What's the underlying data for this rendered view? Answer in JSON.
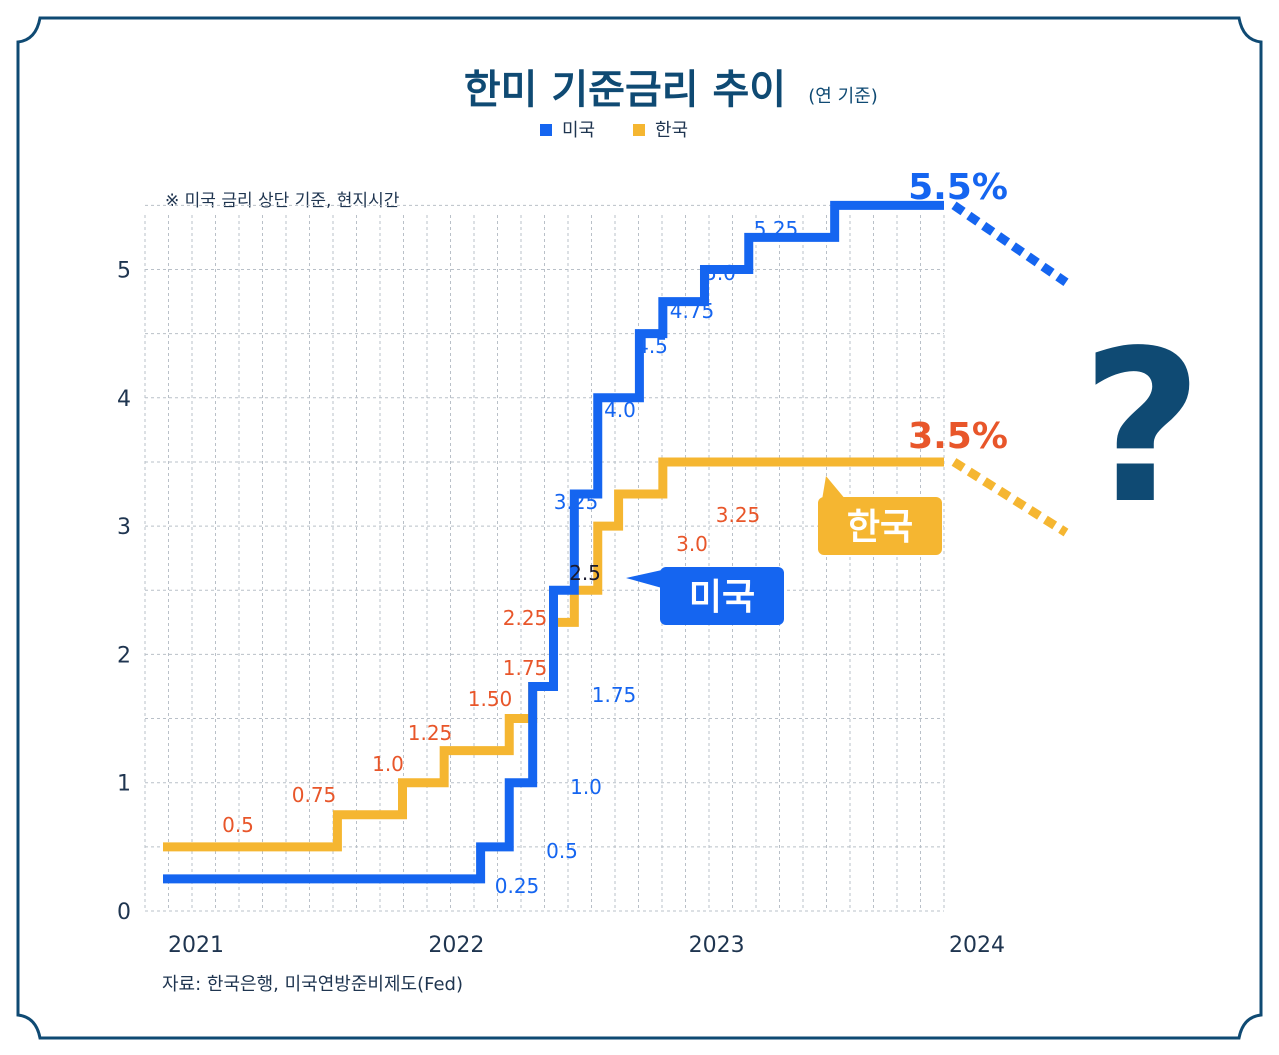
{
  "chart_data": {
    "type": "line",
    "title": "한미 기준금리 추이",
    "subtitle": "(연 기준)",
    "note": "※ 미국 금리 상단 기준, 현지시간",
    "source": "자료: 한국은행, 미국연방준비제도(Fed)",
    "x_ticks": [
      "2021",
      "2022",
      "2023",
      "2024"
    ],
    "y_ticks": [
      "0",
      "1",
      "2",
      "3",
      "4",
      "5"
    ],
    "ylim": [
      0,
      5.6
    ],
    "xlim": [
      2021.0,
      2024.0
    ],
    "grid": true,
    "legend_position": "top-center",
    "legend": [
      {
        "name": "미국",
        "color": "#1565f0"
      },
      {
        "name": "한국",
        "color": "#f5b631"
      }
    ],
    "series": [
      {
        "name": "미국",
        "color": "#1565f0",
        "x": [
          2021.0,
          2022.22,
          2022.33,
          2022.42,
          2022.5,
          2022.58,
          2022.67,
          2022.83,
          2022.92,
          2023.08,
          2023.25,
          2023.58,
          2024.0
        ],
        "values": [
          0.25,
          0.5,
          1.0,
          1.75,
          2.5,
          3.25,
          4.0,
          4.5,
          4.75,
          5.0,
          5.25,
          5.5,
          5.5
        ],
        "labels": [
          "0.25",
          "0.5",
          "1.0",
          "1.75",
          "2.5",
          "3.25",
          "4.0",
          "4.5",
          "4.75",
          "5.0",
          "5.25"
        ],
        "end_label": "5.5%",
        "tag": "미국",
        "forecast_end": 4.9
      },
      {
        "name": "한국",
        "color": "#f5b631",
        "x": [
          2021.0,
          2021.67,
          2021.92,
          2022.08,
          2022.33,
          2022.42,
          2022.5,
          2022.58,
          2022.67,
          2022.75,
          2022.92,
          2024.0
        ],
        "values": [
          0.5,
          0.75,
          1.0,
          1.25,
          1.5,
          1.75,
          2.25,
          2.5,
          3.0,
          3.25,
          3.5,
          3.5
        ],
        "labels": [
          "0.5",
          "0.75",
          "1.0",
          "1.25",
          "1.50",
          "1.75",
          "2.25",
          "3.0",
          "3.25"
        ],
        "end_label": "3.5%",
        "tag": "한국",
        "forecast_end": 2.95
      }
    ],
    "annotation": "?"
  },
  "colors": {
    "title": "#0f4a73",
    "us": "#1565f0",
    "kr": "#f5b631",
    "kr_label": "#e8562a",
    "frame": "#0f4a73"
  }
}
